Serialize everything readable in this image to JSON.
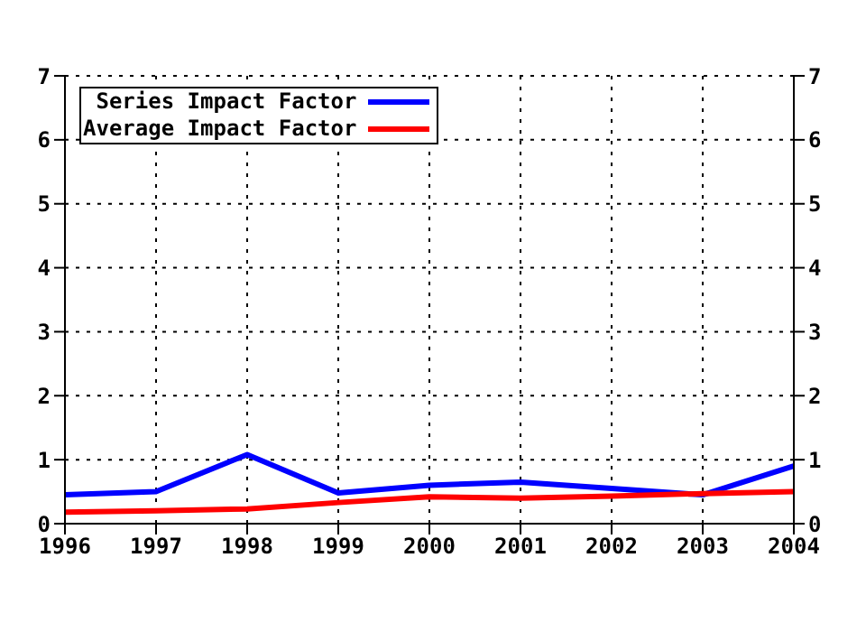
{
  "chart_data": {
    "type": "line",
    "x": [
      1996,
      1997,
      1998,
      1999,
      2000,
      2001,
      2002,
      2003,
      2004
    ],
    "series": [
      {
        "name": "Series Impact Factor",
        "color": "#0000ff",
        "values": [
          0.45,
          0.5,
          1.08,
          0.48,
          0.6,
          0.65,
          0.55,
          0.45,
          0.9
        ]
      },
      {
        "name": "Average Impact Factor",
        "color": "#ff0000",
        "values": [
          0.18,
          0.2,
          0.23,
          0.33,
          0.42,
          0.4,
          0.43,
          0.47,
          0.5
        ]
      }
    ],
    "xlim": [
      1996,
      2004
    ],
    "xticks": [
      1996,
      1997,
      1998,
      1999,
      2000,
      2001,
      2002,
      2003,
      2004
    ],
    "ylim": [
      0,
      7
    ],
    "yticks": [
      0,
      1,
      2,
      3,
      4,
      5,
      6,
      7
    ],
    "y2lim": [
      0,
      7
    ],
    "y2ticks": [
      0,
      1,
      2,
      3,
      4,
      5,
      6,
      7
    ],
    "grid": true,
    "legend": "top left",
    "marker": "none",
    "line_style": "solid"
  }
}
